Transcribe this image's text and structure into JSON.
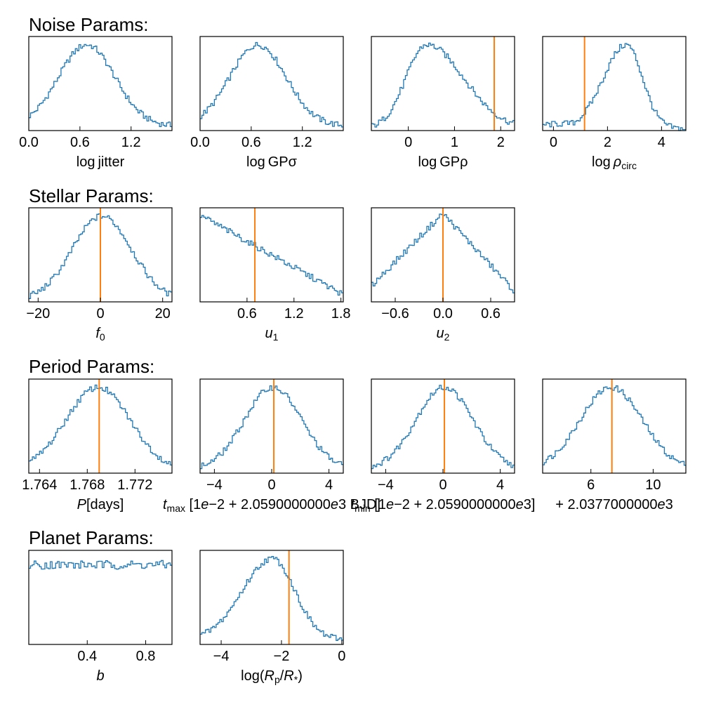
{
  "figure_title": "",
  "colors": {
    "histogram": "#1f77b4",
    "truth_line": "#ff7f0e",
    "frame": "#000000"
  },
  "sections": [
    {
      "title": "Noise Params:"
    },
    {
      "title": "Stellar Params:"
    },
    {
      "title": "Period Params:"
    },
    {
      "title": "Planet Params:"
    }
  ],
  "chart_data": [
    {
      "type": "histogram",
      "section": 0,
      "col": 0,
      "xlabel": [
        {
          "t": "log jitter"
        }
      ],
      "xlim": [
        0.0,
        1.68
      ],
      "ticks": [
        0.0,
        0.6,
        1.2
      ],
      "tick_labels": [
        "0.0",
        "0.6",
        "1.2"
      ],
      "shape": {
        "kind": "gauss",
        "mu": 0.68,
        "sigma": 0.33,
        "base": 0.05
      },
      "marker": null
    },
    {
      "type": "histogram",
      "section": 0,
      "col": 1,
      "xlabel": [
        {
          "t": "log GPσ"
        }
      ],
      "xlim": [
        0.0,
        1.68
      ],
      "ticks": [
        0.0,
        0.6,
        1.2
      ],
      "tick_labels": [
        "0.0",
        "0.6",
        "1.2"
      ],
      "shape": {
        "kind": "gauss",
        "mu": 0.68,
        "sigma": 0.33,
        "base": 0.05
      },
      "marker": null
    },
    {
      "type": "histogram",
      "section": 0,
      "col": 2,
      "xlabel": [
        {
          "t": "log GPρ"
        }
      ],
      "xlim": [
        -0.8,
        2.3
      ],
      "ticks": [
        0,
        1,
        2
      ],
      "tick_labels": [
        "0",
        "1",
        "2"
      ],
      "shape": {
        "kind": "skew",
        "mu": 0.4,
        "sl": 0.45,
        "sr": 0.8,
        "base": 0.02
      },
      "marker": 1.86
    },
    {
      "type": "histogram",
      "section": 0,
      "col": 3,
      "xlabel": [
        {
          "t": "log "
        },
        {
          "t": "ρ",
          "i": true
        },
        {
          "t": "circ",
          "sub": true
        }
      ],
      "xlim": [
        -0.4,
        4.9
      ],
      "ticks": [
        0,
        2,
        4
      ],
      "tick_labels": [
        "0",
        "2",
        "4"
      ],
      "shape": {
        "kind": "skew",
        "mu": 2.7,
        "sl": 0.85,
        "sr": 0.6,
        "base": 0.02,
        "tail": 0.1
      },
      "marker": 1.15
    },
    {
      "type": "histogram",
      "section": 1,
      "col": 0,
      "xlabel": [
        {
          "t": "f",
          "i": true
        },
        {
          "t": "0",
          "sub": true
        }
      ],
      "xlim": [
        -23,
        23
      ],
      "ticks": [
        -20,
        0,
        20
      ],
      "tick_labels": [
        "−20",
        "0",
        "20"
      ],
      "shape": {
        "kind": "gauss",
        "mu": 0.5,
        "sigma": 9.5,
        "base": 0.02
      },
      "marker": 0.0
    },
    {
      "type": "histogram",
      "section": 1,
      "col": 1,
      "xlabel": [
        {
          "t": "u",
          "i": true
        },
        {
          "t": "1",
          "sub": true
        }
      ],
      "xlim": [
        0.0,
        1.83
      ],
      "ticks": [
        0.6,
        1.2,
        1.8
      ],
      "tick_labels": [
        "0.6",
        "1.2",
        "1.8"
      ],
      "shape": {
        "kind": "linear",
        "y0": 0.98,
        "y1": 0.08,
        "base": 0.0
      },
      "marker": 0.7
    },
    {
      "type": "histogram",
      "section": 1,
      "col": 2,
      "xlabel": [
        {
          "t": "u",
          "i": true
        },
        {
          "t": "2",
          "sub": true
        }
      ],
      "xlim": [
        -0.9,
        0.9
      ],
      "ticks": [
        -0.6,
        0.0,
        0.6
      ],
      "tick_labels": [
        "−0.6",
        "0.0",
        "0.6"
      ],
      "shape": {
        "kind": "tent",
        "mu": 0.0,
        "left": 0.18,
        "right": 0.12,
        "base": 0.0
      },
      "marker": 0.0
    },
    {
      "type": "histogram",
      "section": 2,
      "col": 0,
      "xlabel": [
        {
          "t": "P",
          "i": true
        },
        {
          "t": "[days]"
        }
      ],
      "xlim": [
        1.7631,
        1.7751
      ],
      "ticks": [
        1.764,
        1.768,
        1.772
      ],
      "tick_labels": [
        "1.764",
        "1.768",
        "1.772"
      ],
      "shape": {
        "kind": "gauss",
        "mu": 1.7689,
        "sigma": 0.0027,
        "base": 0.03
      },
      "marker": 1.769
    },
    {
      "type": "histogram",
      "section": 2,
      "col": 1,
      "xlabel": [
        {
          "t": "t",
          "i": true
        },
        {
          "t": "max",
          "sub": true
        },
        {
          "t": "  [1"
        },
        {
          "t": "e",
          "i": true
        },
        {
          "t": "−2 + 2.0590000000"
        },
        {
          "t": "e",
          "i": true
        },
        {
          "t": "3 BJD]"
        }
      ],
      "xlim": [
        -5.0,
        5.0
      ],
      "ticks": [
        -4,
        0,
        4
      ],
      "tick_labels": [
        "−4",
        "0",
        "4"
      ],
      "shape": {
        "kind": "gauss",
        "mu": 0.1,
        "sigma": 2.0,
        "base": 0.04
      },
      "marker": 0.15
    },
    {
      "type": "histogram",
      "section": 2,
      "col": 2,
      "xlabel": [
        {
          "t": "t",
          "i": true
        },
        {
          "t": "min",
          "sub": true
        },
        {
          "t": "  [1"
        },
        {
          "t": "e",
          "i": true
        },
        {
          "t": "−2 + 2.0590000000"
        },
        {
          "t": "e",
          "i": true
        },
        {
          "t": "3]"
        }
      ],
      "xlim": [
        -5.0,
        5.0
      ],
      "ticks": [
        -4,
        0,
        4
      ],
      "tick_labels": [
        "−4",
        "0",
        "4"
      ],
      "shape": {
        "kind": "gauss",
        "mu": 0.1,
        "sigma": 2.0,
        "base": 0.04
      },
      "marker": 0.1
    },
    {
      "type": "histogram",
      "section": 2,
      "col": 3,
      "xlabel": [
        {
          "t": "+ 2.0377000000"
        },
        {
          "t": "e",
          "i": true
        },
        {
          "t": "3"
        }
      ],
      "xlim": [
        2.9,
        12.1
      ],
      "ticks": [
        6,
        10
      ],
      "tick_labels": [
        "6",
        "10"
      ],
      "shape": {
        "kind": "gauss",
        "mu": 7.3,
        "sigma": 2.0,
        "base": 0.04
      },
      "marker": 7.35
    },
    {
      "type": "histogram",
      "section": 3,
      "col": 0,
      "xlabel": [
        {
          "t": "b",
          "i": true
        }
      ],
      "xlim": [
        0.0,
        0.98
      ],
      "ticks": [
        0.4,
        0.8
      ],
      "tick_labels": [
        "0.4",
        "0.8"
      ],
      "shape": {
        "kind": "flat",
        "level": 0.9,
        "noise": 0.05
      },
      "marker": null
    },
    {
      "type": "histogram",
      "section": 3,
      "col": 1,
      "xlabel": [
        {
          "t": "log("
        },
        {
          "t": "R",
          "i": true
        },
        {
          "t": "p",
          "sub": true
        },
        {
          "t": "/"
        },
        {
          "t": "R",
          "i": true
        },
        {
          "t": "*",
          "sub": true
        },
        {
          "t": ")"
        }
      ],
      "xlim": [
        -4.7,
        0.05
      ],
      "ticks": [
        -4,
        -2,
        0
      ],
      "tick_labels": [
        "−4",
        "−2",
        "0"
      ],
      "shape": {
        "kind": "skew",
        "mu": -2.3,
        "sl": 1.0,
        "sr": 0.75,
        "base": 0.05
      },
      "marker": -1.75
    }
  ]
}
